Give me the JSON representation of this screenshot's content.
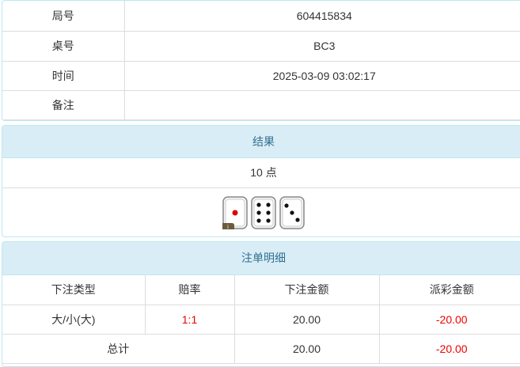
{
  "info": {
    "rows": [
      {
        "label": "局号",
        "value": "604415834"
      },
      {
        "label": "桌号",
        "value": "BC3"
      },
      {
        "label": "时间",
        "value": "2025-03-09 03:02:17"
      },
      {
        "label": "备注",
        "value": ""
      }
    ]
  },
  "result": {
    "title": "结果",
    "points": "10 点",
    "dice": [
      1,
      6,
      3
    ],
    "info_badge": "i"
  },
  "bets": {
    "title": "注单明细",
    "headers": [
      "下注类型",
      "赔率",
      "下注金额",
      "派彩金额"
    ],
    "rows": [
      {
        "type": "大/小(大)",
        "odds": "1:1",
        "amount": "20.00",
        "payout": "-20.00"
      }
    ],
    "total": {
      "label": "总计",
      "amount": "20.00",
      "payout": "-20.00"
    }
  },
  "colors": {
    "header_bg": "#d9edf7",
    "negative": "#ee0000"
  }
}
